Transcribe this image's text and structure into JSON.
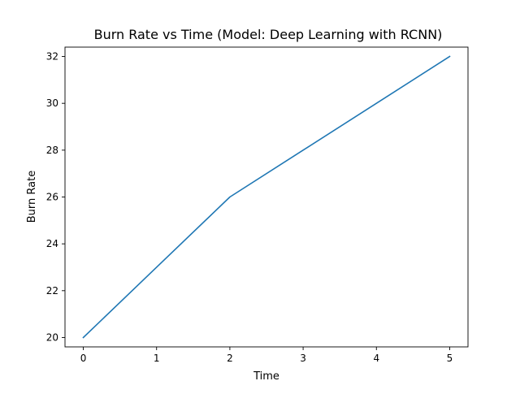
{
  "chart_data": {
    "type": "line",
    "title": "Burn Rate vs Time (Model: Deep Learning with RCNN)",
    "xlabel": "Time",
    "ylabel": "Burn Rate",
    "x": [
      0,
      1,
      2,
      3,
      4,
      5
    ],
    "series": [
      {
        "values": [
          20,
          23,
          26,
          28,
          30,
          32
        ],
        "color": "#1f77b4"
      }
    ],
    "xlim": [
      -0.25,
      5.25
    ],
    "ylim": [
      19.6,
      32.4
    ],
    "xticks": [
      0,
      1,
      2,
      3,
      4,
      5
    ],
    "yticks": [
      20,
      22,
      24,
      26,
      28,
      30,
      32
    ],
    "grid": false,
    "legend": "none"
  }
}
